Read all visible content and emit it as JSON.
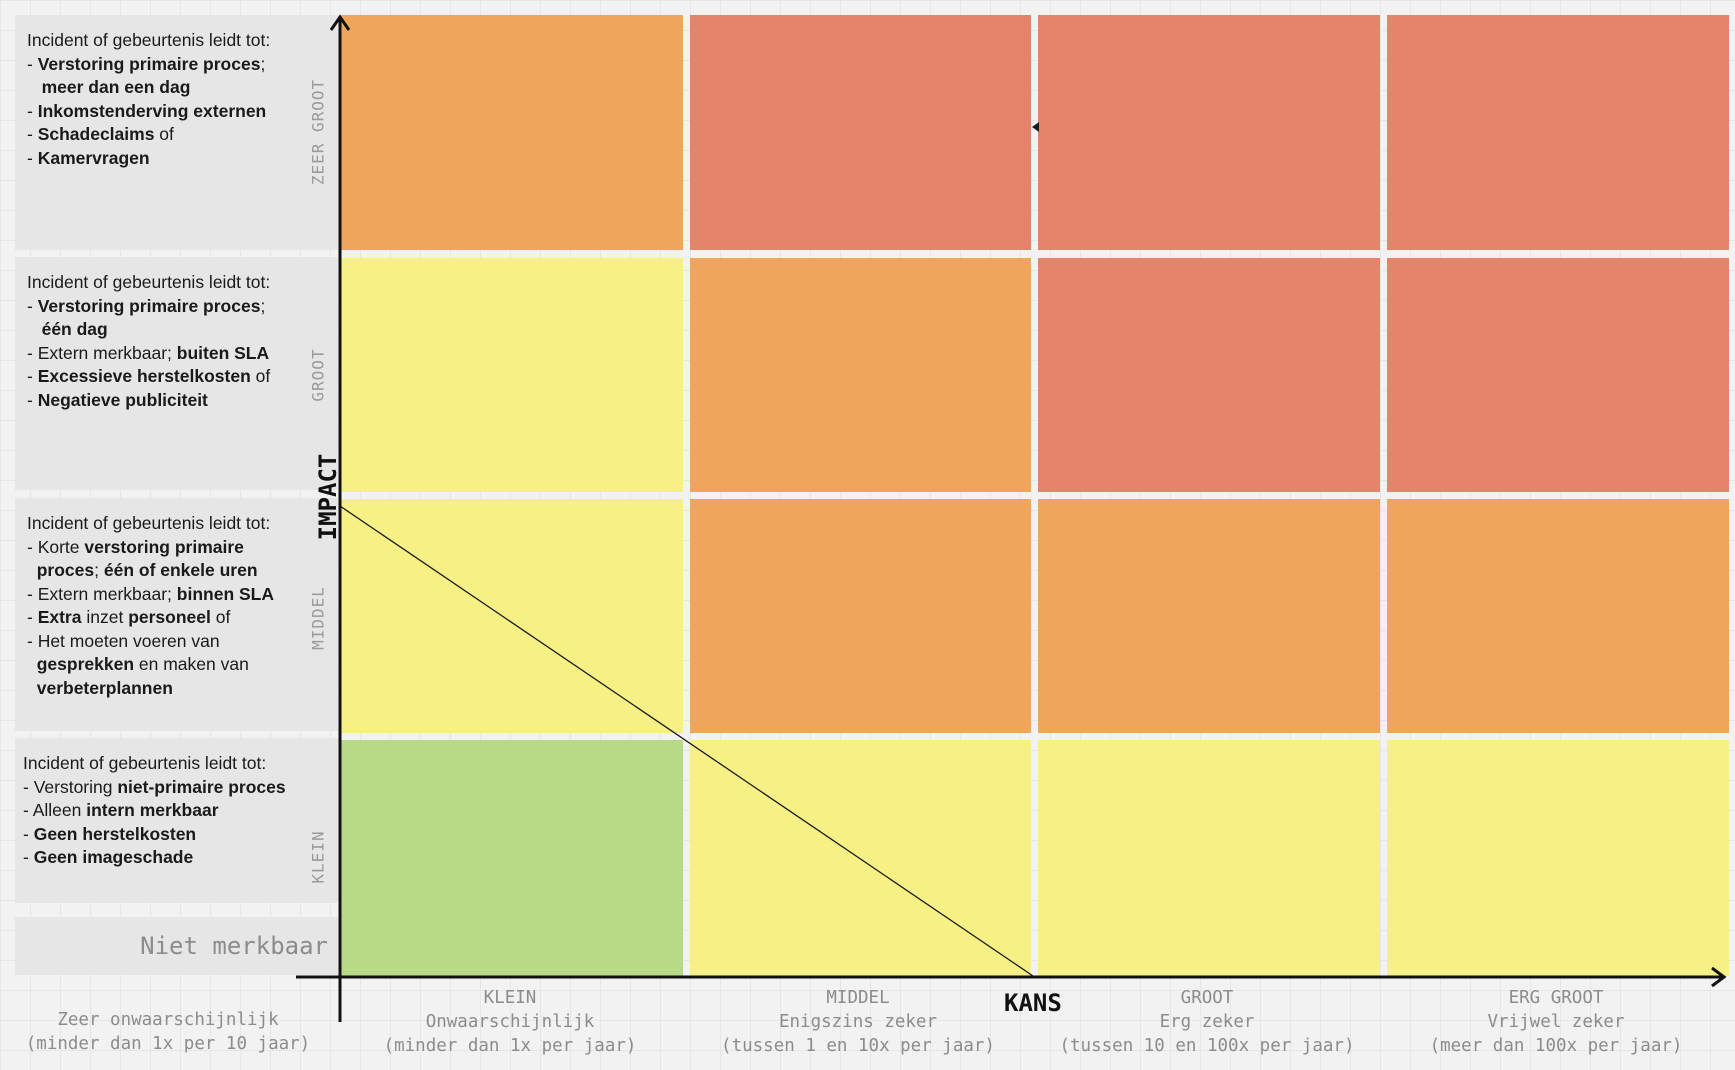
{
  "colors": {
    "green": "#b8d985",
    "yellow": "#f7f085",
    "orange": "#eda65b",
    "red": "#e6846b"
  },
  "axes": {
    "y_title": "IMPACT",
    "x_title": "KANS"
  },
  "rows": [
    {
      "label": "ZEER GROOT",
      "description": [
        [
          {
            "t": "Incident of gebeurtenis leidt tot:",
            "b": false
          }
        ],
        [
          {
            "t": "- ",
            "b": false
          },
          {
            "t": "Verstoring primaire proces",
            "b": true
          },
          {
            "t": ";",
            "b": false
          }
        ],
        [
          {
            "t": "   ",
            "b": false
          },
          {
            "t": "meer dan een dag",
            "b": true
          }
        ],
        [
          {
            "t": "- ",
            "b": false
          },
          {
            "t": "Inkomstenderving externen",
            "b": true
          }
        ],
        [
          {
            "t": "- ",
            "b": false
          },
          {
            "t": "Schadeclaims",
            "b": true
          },
          {
            "t": " of",
            "b": false
          }
        ],
        [
          {
            "t": "- ",
            "b": false
          },
          {
            "t": "Kamervragen",
            "b": true
          }
        ]
      ]
    },
    {
      "label": "GROOT",
      "description": [
        [
          {
            "t": "Incident of gebeurtenis leidt tot:",
            "b": false
          }
        ],
        [
          {
            "t": "- ",
            "b": false
          },
          {
            "t": "Verstoring primaire proces",
            "b": true
          },
          {
            "t": ";",
            "b": false
          }
        ],
        [
          {
            "t": "   ",
            "b": false
          },
          {
            "t": "één dag",
            "b": true
          }
        ],
        [
          {
            "t": "- Extern merkbaar; ",
            "b": false
          },
          {
            "t": "buiten SLA",
            "b": true
          }
        ],
        [
          {
            "t": "- ",
            "b": false
          },
          {
            "t": "Excessieve herstelkosten",
            "b": true
          },
          {
            "t": " of",
            "b": false
          }
        ],
        [
          {
            "t": "- ",
            "b": false
          },
          {
            "t": "Negatieve publiciteit",
            "b": true
          }
        ]
      ]
    },
    {
      "label": "MIDDEL",
      "description": [
        [
          {
            "t": "Incident of gebeurtenis leidt tot:",
            "b": false
          }
        ],
        [
          {
            "t": "- Korte ",
            "b": false
          },
          {
            "t": "verstoring primaire",
            "b": true
          }
        ],
        [
          {
            "t": "  ",
            "b": false
          },
          {
            "t": "proces",
            "b": true
          },
          {
            "t": "; ",
            "b": false
          },
          {
            "t": "één of enkele uren",
            "b": true
          }
        ],
        [
          {
            "t": "- Extern merkbaar; ",
            "b": false
          },
          {
            "t": "binnen SLA",
            "b": true
          }
        ],
        [
          {
            "t": "- ",
            "b": false
          },
          {
            "t": "Extra",
            "b": true
          },
          {
            "t": " inzet ",
            "b": false
          },
          {
            "t": "personeel",
            "b": true
          },
          {
            "t": " of",
            "b": false
          }
        ],
        [
          {
            "t": "- Het moeten voeren van",
            "b": false
          }
        ],
        [
          {
            "t": "  ",
            "b": false
          },
          {
            "t": "gesprekken",
            "b": true
          },
          {
            "t": " en maken van",
            "b": false
          }
        ],
        [
          {
            "t": "  ",
            "b": false
          },
          {
            "t": "verbeterplannen",
            "b": true
          }
        ]
      ]
    },
    {
      "label": "KLEIN",
      "description": [
        [
          {
            "t": "Incident of gebeurtenis leidt tot:",
            "b": false
          }
        ],
        [
          {
            "t": "- Verstoring ",
            "b": false
          },
          {
            "t": "niet-primaire proces",
            "b": true
          }
        ],
        [
          {
            "t": "- Alleen ",
            "b": false
          },
          {
            "t": "intern merkbaar",
            "b": true
          }
        ],
        [
          {
            "t": "- ",
            "b": false
          },
          {
            "t": "Geen herstelkosten",
            "b": true
          }
        ],
        [
          {
            "t": "- ",
            "b": false
          },
          {
            "t": "Geen imageschade",
            "b": true
          }
        ]
      ]
    }
  ],
  "niet_merkbaar": "Niet merkbaar",
  "left_bottom_label": [
    "Zeer onwaarschijnlijk",
    "(minder dan 1x per 10 jaar)"
  ],
  "columns": [
    {
      "label": "KLEIN",
      "line1": "Onwaarschijnlijk",
      "line2": "(minder dan 1x per jaar)"
    },
    {
      "label": "MIDDEL",
      "line1": "Enigszins zeker",
      "line2": "(tussen 1 en 10x per jaar)"
    },
    {
      "label": "GROOT",
      "line1": "Erg zeker",
      "line2": "(tussen 10 en 100x per jaar)"
    },
    {
      "label": "ERG GROOT",
      "line1": "Vrijwel zeker",
      "line2": "(meer dan 100x per jaar)"
    }
  ],
  "matrix": [
    [
      "orange",
      "red",
      "red",
      "red"
    ],
    [
      "yellow",
      "orange",
      "red",
      "red"
    ],
    [
      "yellow",
      "orange",
      "orange",
      "orange"
    ],
    [
      "green",
      "yellow",
      "yellow",
      "yellow"
    ]
  ]
}
